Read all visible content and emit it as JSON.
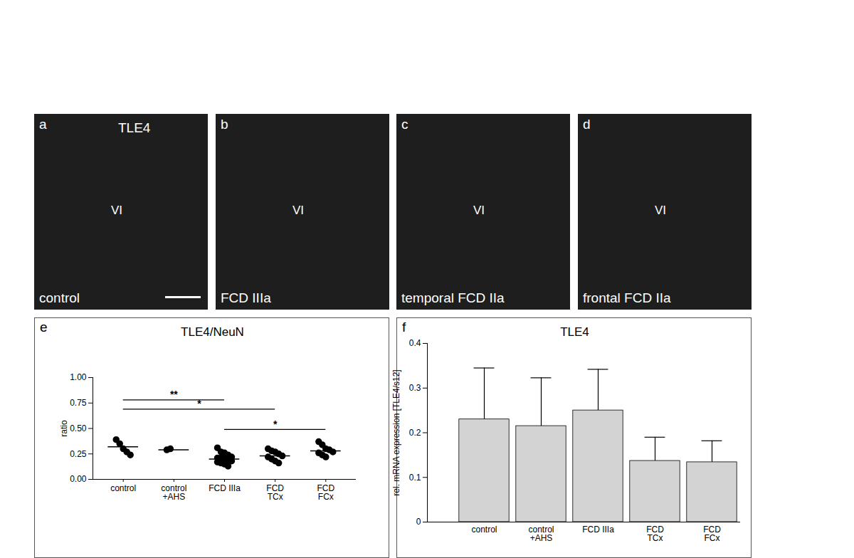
{
  "image_panels": [
    {
      "letter": "a",
      "stain": "TLE4",
      "layer": "VI",
      "label": "control"
    },
    {
      "letter": "b",
      "layer": "VI",
      "label": "FCD IIIa"
    },
    {
      "letter": "c",
      "layer": "VI",
      "label": "temporal FCD IIa"
    },
    {
      "letter": "d",
      "layer": "VI",
      "label": "frontal FCD IIa"
    }
  ],
  "chart_data": [
    {
      "type": "scatter",
      "panel": "e",
      "title": "TLE4/NeuN",
      "y_label": "ratio",
      "categories": [
        "control",
        "control\n+AHS",
        "FCD IIIa",
        "FCD\nTCx",
        "FCD\nFCx"
      ],
      "points": [
        [
          0.39,
          0.35,
          0.3,
          0.27,
          0.24
        ],
        [
          0.29,
          0.3
        ],
        [
          0.31,
          0.27,
          0.26,
          0.24,
          0.22,
          0.21,
          0.21,
          0.2,
          0.19,
          0.18,
          0.17,
          0.16,
          0.15,
          0.13
        ],
        [
          0.3,
          0.28,
          0.27,
          0.25,
          0.23,
          0.22,
          0.2,
          0.18,
          0.16
        ],
        [
          0.37,
          0.34,
          0.3,
          0.29,
          0.27,
          0.26,
          0.24,
          0.22
        ]
      ],
      "lines": [
        0.32,
        0.29,
        0.2,
        0.23,
        0.28
      ],
      "significance": [
        {
          "from": "control",
          "to": "FCD IIIa",
          "label": "**",
          "y": 0.78
        },
        {
          "from": "control",
          "to": "FCD\nTCx",
          "label": "*",
          "y": 0.69
        },
        {
          "from": "FCD IIIa",
          "to": "FCD\nFCx",
          "label": "*",
          "y": 0.49
        }
      ],
      "color": "#000000",
      "ylim": [
        0,
        1
      ],
      "yticks": [
        {
          "value": 0,
          "label": "0.00"
        },
        {
          "value": 0.25,
          "label": "0.25"
        },
        {
          "value": 0.5,
          "label": "0.50"
        },
        {
          "value": 0.75,
          "label": "0.75"
        },
        {
          "value": 1,
          "label": "1.00"
        }
      ]
    },
    {
      "type": "bar",
      "panel": "f",
      "title": "TLE4",
      "y_label": "rel. mRNA expression [TLE4/s12]",
      "categories": [
        "control",
        "control\n+AHS",
        "FCD IIIa",
        "FCD\nTCx",
        "FCD\nFCx"
      ],
      "values": [
        0.23,
        0.215,
        0.25,
        0.137,
        0.134
      ],
      "errors": [
        0.115,
        0.108,
        0.092,
        0.053,
        0.048
      ],
      "color": "#d3d3d3",
      "ylim": [
        0,
        0.4
      ],
      "yticks": [
        0,
        0.1,
        0.2,
        0.3,
        0.4
      ]
    }
  ]
}
